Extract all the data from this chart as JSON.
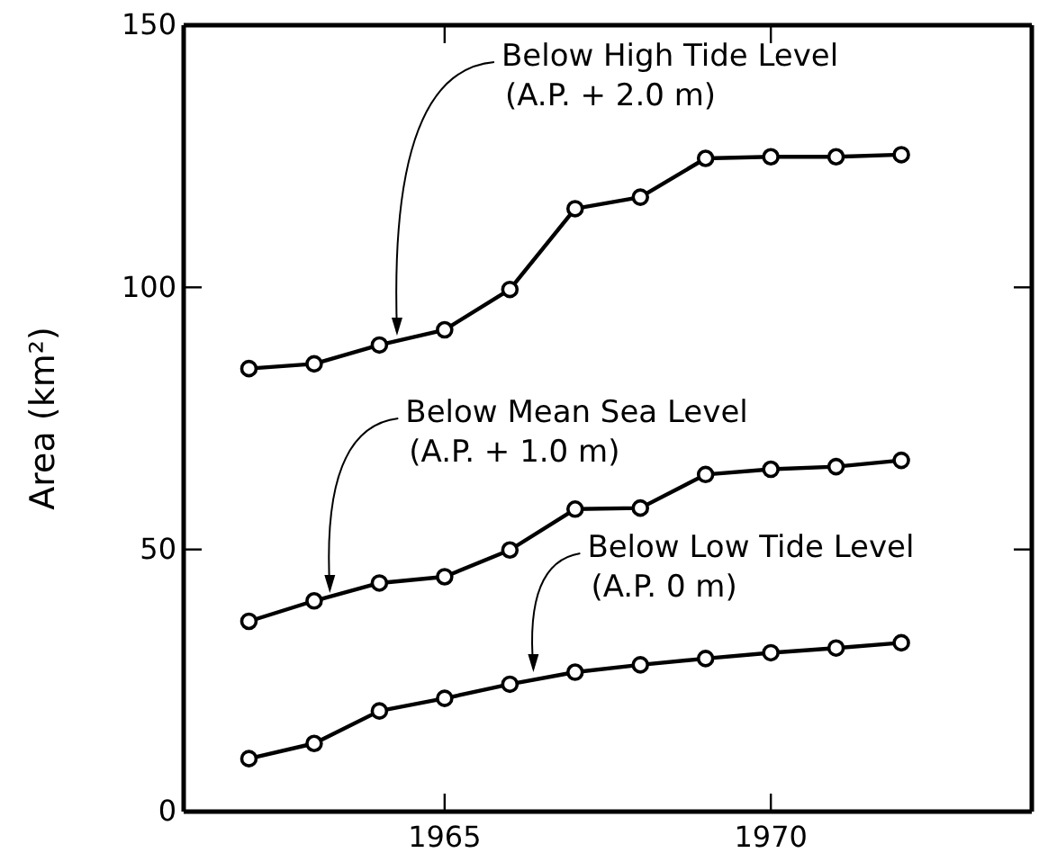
{
  "chart_data": {
    "type": "line",
    "ylabel": "Area (km²)",
    "x": [
      1962,
      1963,
      1964,
      1965,
      1966,
      1967,
      1968,
      1969,
      1970,
      1971,
      1972
    ],
    "series": [
      {
        "color": "#000000",
        "values": [
          84.5,
          85.4,
          89,
          91.9,
          99.6,
          115,
          117.2,
          124.6,
          124.9,
          124.9,
          125.3
        ]
      },
      {
        "color": "#000000",
        "values": [
          36.3,
          40.2,
          43.6,
          44.8,
          49.9,
          57.7,
          57.9,
          64.3,
          65.3,
          65.8,
          67
        ]
      },
      {
        "color": "#000000",
        "values": [
          10.1,
          13,
          19.2,
          21.6,
          24.3,
          26.6,
          28,
          29.2,
          30.3,
          31.2,
          32.2
        ]
      }
    ],
    "xlim": [
      1961,
      1974
    ],
    "xticks": [
      1965,
      1970
    ],
    "ylim": [
      0,
      150
    ],
    "yticks": [
      0,
      50,
      100,
      150
    ],
    "marker": "circle",
    "line_style": "solid",
    "annotations": [
      {
        "text": "Below High Tide Level\n(A.P. + 2.0 m)",
        "x": 1964.27,
        "y": 90.8
      },
      {
        "text": "Below Mean Sea Level\n(A.P. + 1.0 m)",
        "x": 1963.24,
        "y": 41.7
      },
      {
        "text": "Below Low Tide Level\n(A.P.  0 m)",
        "x": 1966.36,
        "y": 26.6
      }
    ]
  }
}
